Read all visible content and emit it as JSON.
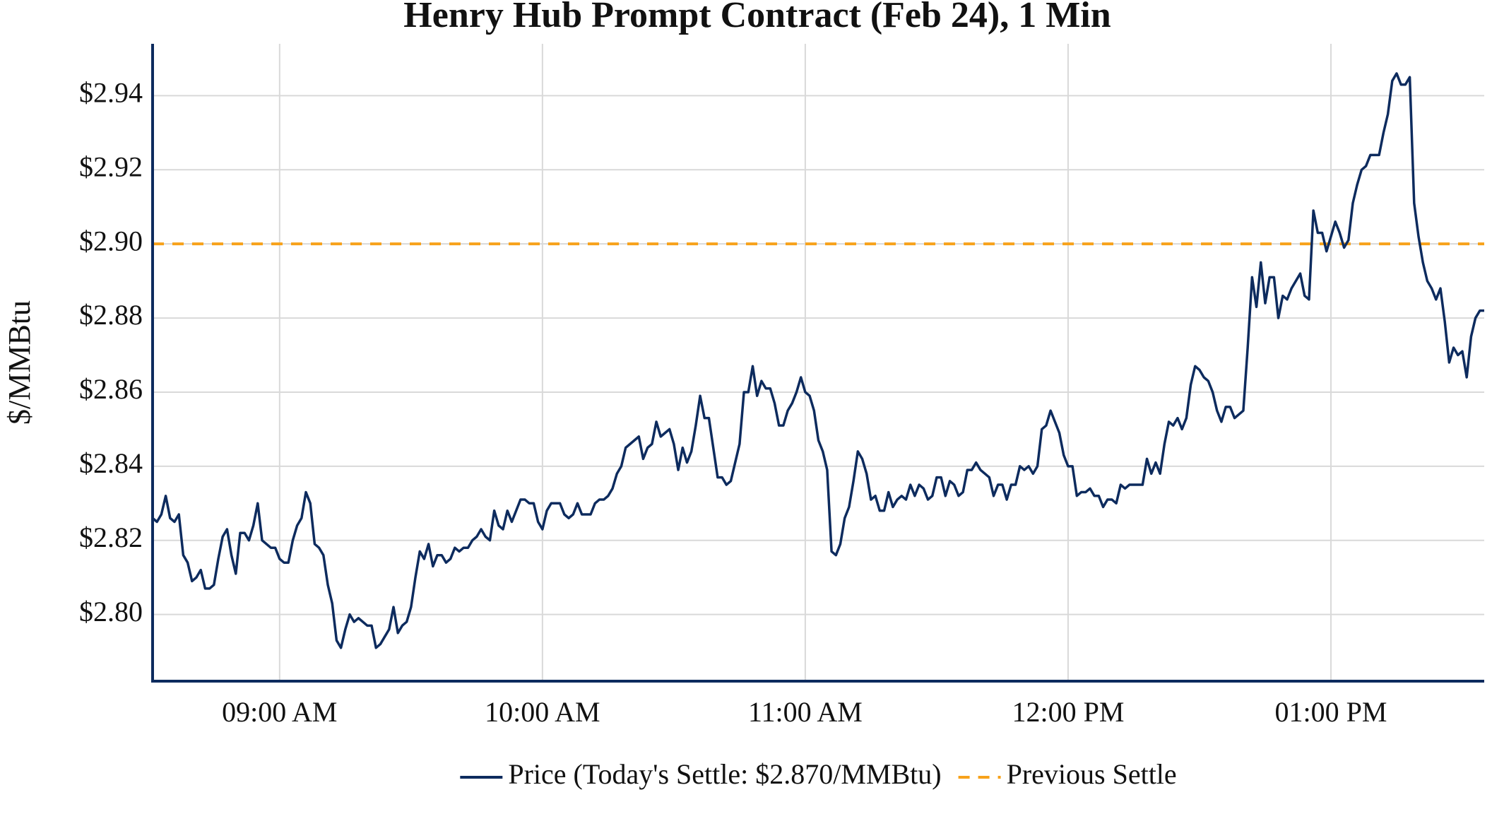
{
  "chart_data": {
    "type": "line",
    "title": "Henry Hub Prompt Contract (Feb 24), 1 Min",
    "y_label": "$/MMBtu",
    "legend": "bottom",
    "grid": true,
    "xlim": [
      "08:31 AM",
      "01:35 PM"
    ],
    "xticks": [
      "09:00 AM",
      "10:00 AM",
      "11:00 AM",
      "12:00 PM",
      "01:00 PM"
    ],
    "ylim": [
      2.782,
      2.954
    ],
    "yticks": [
      {
        "value": 2.8,
        "label": "$2.80"
      },
      {
        "value": 2.82,
        "label": "$2.82"
      },
      {
        "value": 2.84,
        "label": "$2.84"
      },
      {
        "value": 2.86,
        "label": "$2.86"
      },
      {
        "value": 2.88,
        "label": "$2.88"
      },
      {
        "value": 2.9,
        "label": "$2.90"
      },
      {
        "value": 2.92,
        "label": "$2.92"
      },
      {
        "value": 2.94,
        "label": "$2.94"
      }
    ],
    "x": [
      "08:31 AM",
      "08:32 AM",
      "08:33 AM",
      "08:34 AM",
      "08:35 AM",
      "08:36 AM",
      "08:37 AM",
      "08:38 AM",
      "08:39 AM",
      "08:40 AM",
      "08:41 AM",
      "08:42 AM",
      "08:43 AM",
      "08:44 AM",
      "08:45 AM",
      "08:46 AM",
      "08:47 AM",
      "08:48 AM",
      "08:49 AM",
      "08:50 AM",
      "08:51 AM",
      "08:52 AM",
      "08:53 AM",
      "08:54 AM",
      "08:55 AM",
      "08:56 AM",
      "08:57 AM",
      "08:58 AM",
      "08:59 AM",
      "09:00 AM",
      "09:01 AM",
      "09:02 AM",
      "09:03 AM",
      "09:04 AM",
      "09:05 AM",
      "09:06 AM",
      "09:07 AM",
      "09:08 AM",
      "09:09 AM",
      "09:10 AM",
      "09:11 AM",
      "09:12 AM",
      "09:13 AM",
      "09:14 AM",
      "09:15 AM",
      "09:16 AM",
      "09:17 AM",
      "09:18 AM",
      "09:19 AM",
      "09:20 AM",
      "09:21 AM",
      "09:22 AM",
      "09:23 AM",
      "09:24 AM",
      "09:25 AM",
      "09:26 AM",
      "09:27 AM",
      "09:28 AM",
      "09:29 AM",
      "09:30 AM",
      "09:31 AM",
      "09:32 AM",
      "09:33 AM",
      "09:34 AM",
      "09:35 AM",
      "09:36 AM",
      "09:37 AM",
      "09:38 AM",
      "09:39 AM",
      "09:40 AM",
      "09:41 AM",
      "09:42 AM",
      "09:43 AM",
      "09:44 AM",
      "09:45 AM",
      "09:46 AM",
      "09:47 AM",
      "09:48 AM",
      "09:49 AM",
      "09:50 AM",
      "09:51 AM",
      "09:52 AM",
      "09:53 AM",
      "09:54 AM",
      "09:55 AM",
      "09:56 AM",
      "09:57 AM",
      "09:58 AM",
      "09:59 AM",
      "10:00 AM",
      "10:01 AM",
      "10:02 AM",
      "10:03 AM",
      "10:04 AM",
      "10:05 AM",
      "10:06 AM",
      "10:07 AM",
      "10:08 AM",
      "10:09 AM",
      "10:10 AM",
      "10:11 AM",
      "10:12 AM",
      "10:13 AM",
      "10:14 AM",
      "10:15 AM",
      "10:16 AM",
      "10:17 AM",
      "10:18 AM",
      "10:19 AM",
      "10:20 AM",
      "10:21 AM",
      "10:22 AM",
      "10:23 AM",
      "10:24 AM",
      "10:25 AM",
      "10:26 AM",
      "10:27 AM",
      "10:28 AM",
      "10:29 AM",
      "10:30 AM",
      "10:31 AM",
      "10:32 AM",
      "10:33 AM",
      "10:34 AM",
      "10:35 AM",
      "10:36 AM",
      "10:37 AM",
      "10:38 AM",
      "10:39 AM",
      "10:40 AM",
      "10:41 AM",
      "10:42 AM",
      "10:43 AM",
      "10:44 AM",
      "10:45 AM",
      "10:46 AM",
      "10:47 AM",
      "10:48 AM",
      "10:49 AM",
      "10:50 AM",
      "10:51 AM",
      "10:52 AM",
      "10:53 AM",
      "10:54 AM",
      "10:55 AM",
      "10:56 AM",
      "10:57 AM",
      "10:58 AM",
      "10:59 AM",
      "11:00 AM",
      "11:01 AM",
      "11:02 AM",
      "11:03 AM",
      "11:04 AM",
      "11:05 AM",
      "11:06 AM",
      "11:07 AM",
      "11:08 AM",
      "11:09 AM",
      "11:10 AM",
      "11:11 AM",
      "11:12 AM",
      "11:13 AM",
      "11:14 AM",
      "11:15 AM",
      "11:16 AM",
      "11:17 AM",
      "11:18 AM",
      "11:19 AM",
      "11:20 AM",
      "11:21 AM",
      "11:22 AM",
      "11:23 AM",
      "11:24 AM",
      "11:25 AM",
      "11:26 AM",
      "11:27 AM",
      "11:28 AM",
      "11:29 AM",
      "11:30 AM",
      "11:31 AM",
      "11:32 AM",
      "11:33 AM",
      "11:34 AM",
      "11:35 AM",
      "11:36 AM",
      "11:37 AM",
      "11:38 AM",
      "11:39 AM",
      "11:40 AM",
      "11:41 AM",
      "11:42 AM",
      "11:43 AM",
      "11:44 AM",
      "11:45 AM",
      "11:46 AM",
      "11:47 AM",
      "11:48 AM",
      "11:49 AM",
      "11:50 AM",
      "11:51 AM",
      "11:52 AM",
      "11:53 AM",
      "11:54 AM",
      "11:55 AM",
      "11:56 AM",
      "11:57 AM",
      "11:58 AM",
      "11:59 AM",
      "12:00 PM",
      "12:01 PM",
      "12:02 PM",
      "12:03 PM",
      "12:04 PM",
      "12:05 PM",
      "12:06 PM",
      "12:07 PM",
      "12:08 PM",
      "12:09 PM",
      "12:10 PM",
      "12:11 PM",
      "12:12 PM",
      "12:13 PM",
      "12:14 PM",
      "12:15 PM",
      "12:16 PM",
      "12:17 PM",
      "12:18 PM",
      "12:19 PM",
      "12:20 PM",
      "12:21 PM",
      "12:22 PM",
      "12:23 PM",
      "12:24 PM",
      "12:25 PM",
      "12:26 PM",
      "12:27 PM",
      "12:28 PM",
      "12:29 PM",
      "12:30 PM",
      "12:31 PM",
      "12:32 PM",
      "12:33 PM",
      "12:34 PM",
      "12:35 PM",
      "12:36 PM",
      "12:37 PM",
      "12:38 PM",
      "12:39 PM",
      "12:40 PM",
      "12:41 PM",
      "12:42 PM",
      "12:43 PM",
      "12:44 PM",
      "12:45 PM",
      "12:46 PM",
      "12:47 PM",
      "12:48 PM",
      "12:49 PM",
      "12:50 PM",
      "12:51 PM",
      "12:52 PM",
      "12:53 PM",
      "12:54 PM",
      "12:55 PM",
      "12:56 PM",
      "12:57 PM",
      "12:58 PM",
      "12:59 PM",
      "01:00 PM",
      "01:01 PM",
      "01:02 PM",
      "01:03 PM",
      "01:04 PM",
      "01:05 PM",
      "01:06 PM",
      "01:07 PM",
      "01:08 PM",
      "01:09 PM",
      "01:10 PM",
      "01:11 PM",
      "01:12 PM",
      "01:13 PM",
      "01:14 PM",
      "01:15 PM",
      "01:16 PM",
      "01:17 PM",
      "01:18 PM",
      "01:19 PM",
      "01:20 PM",
      "01:21 PM",
      "01:22 PM",
      "01:23 PM",
      "01:24 PM",
      "01:25 PM",
      "01:26 PM",
      "01:27 PM",
      "01:28 PM",
      "01:29 PM",
      "01:30 PM",
      "01:31 PM",
      "01:32 PM",
      "01:33 PM",
      "01:34 PM",
      "01:35 PM"
    ],
    "series": [
      {
        "name": "Price (Today's Settle: $2.870/MMBtu)",
        "color": "#0d2b5e",
        "values": [
          2.826,
          2.825,
          2.827,
          2.832,
          2.826,
          2.825,
          2.827,
          2.816,
          2.814,
          2.809,
          2.81,
          2.812,
          2.807,
          2.807,
          2.808,
          2.815,
          2.821,
          2.823,
          2.816,
          2.811,
          2.822,
          2.822,
          2.82,
          2.824,
          2.83,
          2.82,
          2.819,
          2.818,
          2.818,
          2.815,
          2.814,
          2.814,
          2.82,
          2.824,
          2.826,
          2.833,
          2.83,
          2.819,
          2.818,
          2.816,
          2.808,
          2.803,
          2.793,
          2.791,
          2.796,
          2.8,
          2.798,
          2.799,
          2.798,
          2.797,
          2.797,
          2.791,
          2.792,
          2.794,
          2.796,
          2.802,
          2.795,
          2.797,
          2.798,
          2.802,
          2.81,
          2.817,
          2.815,
          2.819,
          2.813,
          2.816,
          2.816,
          2.814,
          2.815,
          2.818,
          2.817,
          2.818,
          2.818,
          2.82,
          2.821,
          2.823,
          2.821,
          2.82,
          2.828,
          2.824,
          2.823,
          2.828,
          2.825,
          2.828,
          2.831,
          2.831,
          2.83,
          2.83,
          2.825,
          2.823,
          2.828,
          2.83,
          2.83,
          2.83,
          2.827,
          2.826,
          2.827,
          2.83,
          2.827,
          2.827,
          2.827,
          2.83,
          2.831,
          2.831,
          2.832,
          2.834,
          2.838,
          2.84,
          2.845,
          2.846,
          2.847,
          2.848,
          2.842,
          2.845,
          2.846,
          2.852,
          2.848,
          2.849,
          2.85,
          2.846,
          2.839,
          2.845,
          2.841,
          2.844,
          2.851,
          2.859,
          2.853,
          2.853,
          2.845,
          2.837,
          2.837,
          2.835,
          2.836,
          2.841,
          2.846,
          2.86,
          2.86,
          2.867,
          2.859,
          2.863,
          2.861,
          2.861,
          2.857,
          2.851,
          2.851,
          2.855,
          2.857,
          2.86,
          2.864,
          2.86,
          2.859,
          2.855,
          2.847,
          2.844,
          2.839,
          2.817,
          2.816,
          2.819,
          2.826,
          2.829,
          2.836,
          2.844,
          2.842,
          2.838,
          2.831,
          2.832,
          2.828,
          2.828,
          2.833,
          2.829,
          2.831,
          2.832,
          2.831,
          2.835,
          2.832,
          2.835,
          2.834,
          2.831,
          2.832,
          2.837,
          2.837,
          2.832,
          2.836,
          2.835,
          2.832,
          2.833,
          2.839,
          2.839,
          2.841,
          2.839,
          2.838,
          2.837,
          2.832,
          2.835,
          2.835,
          2.831,
          2.835,
          2.835,
          2.84,
          2.839,
          2.84,
          2.838,
          2.84,
          2.85,
          2.851,
          2.855,
          2.852,
          2.849,
          2.843,
          2.84,
          2.84,
          2.832,
          2.833,
          2.833,
          2.834,
          2.832,
          2.832,
          2.829,
          2.831,
          2.831,
          2.83,
          2.835,
          2.834,
          2.835,
          2.835,
          2.835,
          2.835,
          2.842,
          2.838,
          2.841,
          2.838,
          2.846,
          2.852,
          2.851,
          2.853,
          2.85,
          2.853,
          2.862,
          2.867,
          2.866,
          2.864,
          2.863,
          2.86,
          2.855,
          2.852,
          2.856,
          2.856,
          2.853,
          2.854,
          2.855,
          2.872,
          2.891,
          2.883,
          2.895,
          2.884,
          2.891,
          2.891,
          2.88,
          2.886,
          2.885,
          2.888,
          2.89,
          2.892,
          2.886,
          2.885,
          2.909,
          2.903,
          2.903,
          2.898,
          2.902,
          2.906,
          2.903,
          2.899,
          2.901,
          2.911,
          2.916,
          2.92,
          2.921,
          2.924,
          2.924,
          2.924,
          2.93,
          2.935,
          2.944,
          2.946,
          2.943,
          2.943,
          2.945,
          2.911,
          2.902,
          2.895,
          2.89,
          2.888,
          2.885,
          2.888,
          2.879,
          2.868,
          2.872,
          2.87,
          2.871,
          2.864,
          2.875,
          2.88,
          2.882,
          2.882
        ]
      }
    ],
    "reference_lines": [
      {
        "name": "Previous Settle",
        "value": 2.9,
        "color": "#f7a21b",
        "style": "dashed"
      }
    ]
  }
}
